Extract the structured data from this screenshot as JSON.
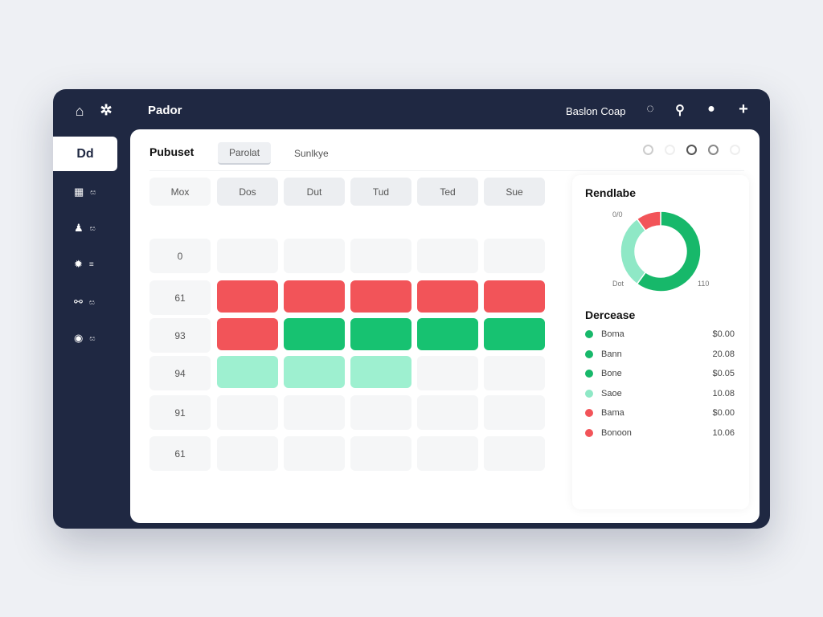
{
  "app": {
    "title": "Pador",
    "company": "Baslon Coap"
  },
  "sidebar": {
    "active": "Dd",
    "items": [
      {
        "icon": "calendar-icon",
        "label": "ඝ"
      },
      {
        "icon": "pawn-icon",
        "label": "ඝ"
      },
      {
        "icon": "bug-icon",
        "label": "≡"
      },
      {
        "icon": "share-icon",
        "label": "ඝ"
      },
      {
        "icon": "location-icon",
        "label": "ඝ"
      }
    ]
  },
  "panel": {
    "title": "Pubuset",
    "tabs": [
      {
        "label": "Parolat",
        "active": true
      },
      {
        "label": "Sunlkye",
        "active": false
      }
    ]
  },
  "grid": {
    "corner": "Mox",
    "columns": [
      "Dos",
      "Dut",
      "Tud",
      "Ted",
      "Sue"
    ],
    "rows": [
      {
        "label": "0",
        "cells": [
          "",
          "",
          "",
          "",
          ""
        ]
      },
      {
        "label": "61",
        "cells": [
          "red",
          "red",
          "red",
          "red",
          "red"
        ]
      },
      {
        "label": "93",
        "cells": [
          "red",
          "green",
          "green",
          "green",
          "green"
        ]
      },
      {
        "label": "94",
        "cells": [
          "mint",
          "mint",
          "mint",
          "",
          ""
        ]
      },
      {
        "label": "91",
        "cells": [
          "",
          "",
          "",
          "",
          ""
        ]
      },
      {
        "label": "61",
        "cells": [
          "",
          "",
          "",
          "",
          ""
        ]
      }
    ]
  },
  "colors": {
    "red": "#f25459",
    "green": "#17c271",
    "mint": "#9ef0d0",
    "empty": "#f5f6f7",
    "navy": "#1f2842"
  },
  "donut": {
    "title": "Rendlabe",
    "labels": {
      "top": "0/0",
      "bottom_left": "Dot",
      "bottom_right": "110"
    },
    "segments": [
      {
        "color": "#17b86a",
        "value": 60
      },
      {
        "color": "#8fe8c6",
        "value": 30
      },
      {
        "color": "#f25459",
        "value": 10
      }
    ]
  },
  "legend": {
    "title": "Dercease",
    "items": [
      {
        "label": "Boma",
        "value": "$0.00",
        "color": "#17b86a"
      },
      {
        "label": "Bann",
        "value": "20.08",
        "color": "#17b86a"
      },
      {
        "label": "Bone",
        "value": "$0.05",
        "color": "#17b86a"
      },
      {
        "label": "Saoe",
        "value": "10.08",
        "color": "#8fe8c6"
      },
      {
        "label": "Bama",
        "value": "$0.00",
        "color": "#f25459"
      },
      {
        "label": "Bonoon",
        "value": "10.06",
        "color": "#f25459"
      }
    ]
  }
}
